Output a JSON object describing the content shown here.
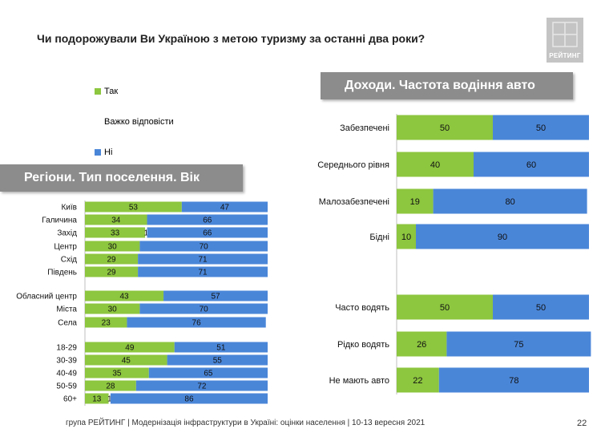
{
  "title": "Чи подорожували Ви Україною з метою туризму за останні два роки?",
  "logo_text": "РЕЙТИНГ",
  "legend": [
    {
      "label": "Так",
      "color": "#8dc63f"
    },
    {
      "label": "Важко відповісти",
      "color": "#ffffff"
    },
    {
      "label": "Ні",
      "color": "#4a86d8"
    }
  ],
  "colors": {
    "yes": "#8dc63f",
    "hard": "#ffffff",
    "no": "#4a86d8"
  },
  "footer": "група РЕЙТИНГ | Модернізація інфраструктури в Україні: оцінки населення | 10-13 вересня 2021",
  "page_number": "22",
  "chart_data": [
    {
      "type": "bar",
      "title": "Регіони. Тип поселення. Вік",
      "categories": [
        "Київ",
        "Галичина",
        "Захід",
        "Центр",
        "Схід",
        "Південь",
        "Обласний центр",
        "Міста",
        "Села",
        "18-29",
        "30-39",
        "40-49",
        "50-59",
        "60+"
      ],
      "series": [
        {
          "name": "Так",
          "values": [
            53,
            34,
            33,
            30,
            29,
            29,
            43,
            30,
            23,
            49,
            45,
            35,
            28,
            13
          ]
        },
        {
          "name": "Важко відповісти",
          "values": [
            0,
            0,
            1,
            0,
            0,
            0,
            0,
            0,
            0,
            0,
            0,
            0,
            0,
            1
          ]
        },
        {
          "name": "Ні",
          "values": [
            47,
            66,
            66,
            70,
            71,
            71,
            57,
            70,
            76,
            51,
            55,
            65,
            72,
            86
          ]
        }
      ],
      "xlim": [
        0,
        100
      ]
    },
    {
      "type": "bar",
      "title": "Доходи. Частота водіння авто",
      "categories": [
        "Забезпечені",
        "Середнього рівня",
        "Малозабезпечені",
        "Бідні",
        "Часто водять",
        "Рідко водять",
        "Не мають авто"
      ],
      "series": [
        {
          "name": "Так",
          "values": [
            50,
            40,
            19,
            10,
            50,
            26,
            22
          ]
        },
        {
          "name": "Важко відповісти",
          "values": [
            0,
            0,
            0,
            0,
            0,
            0,
            0
          ]
        },
        {
          "name": "Ні",
          "values": [
            50,
            60,
            80,
            90,
            50,
            75,
            78
          ]
        }
      ],
      "xlim": [
        0,
        100
      ]
    }
  ]
}
